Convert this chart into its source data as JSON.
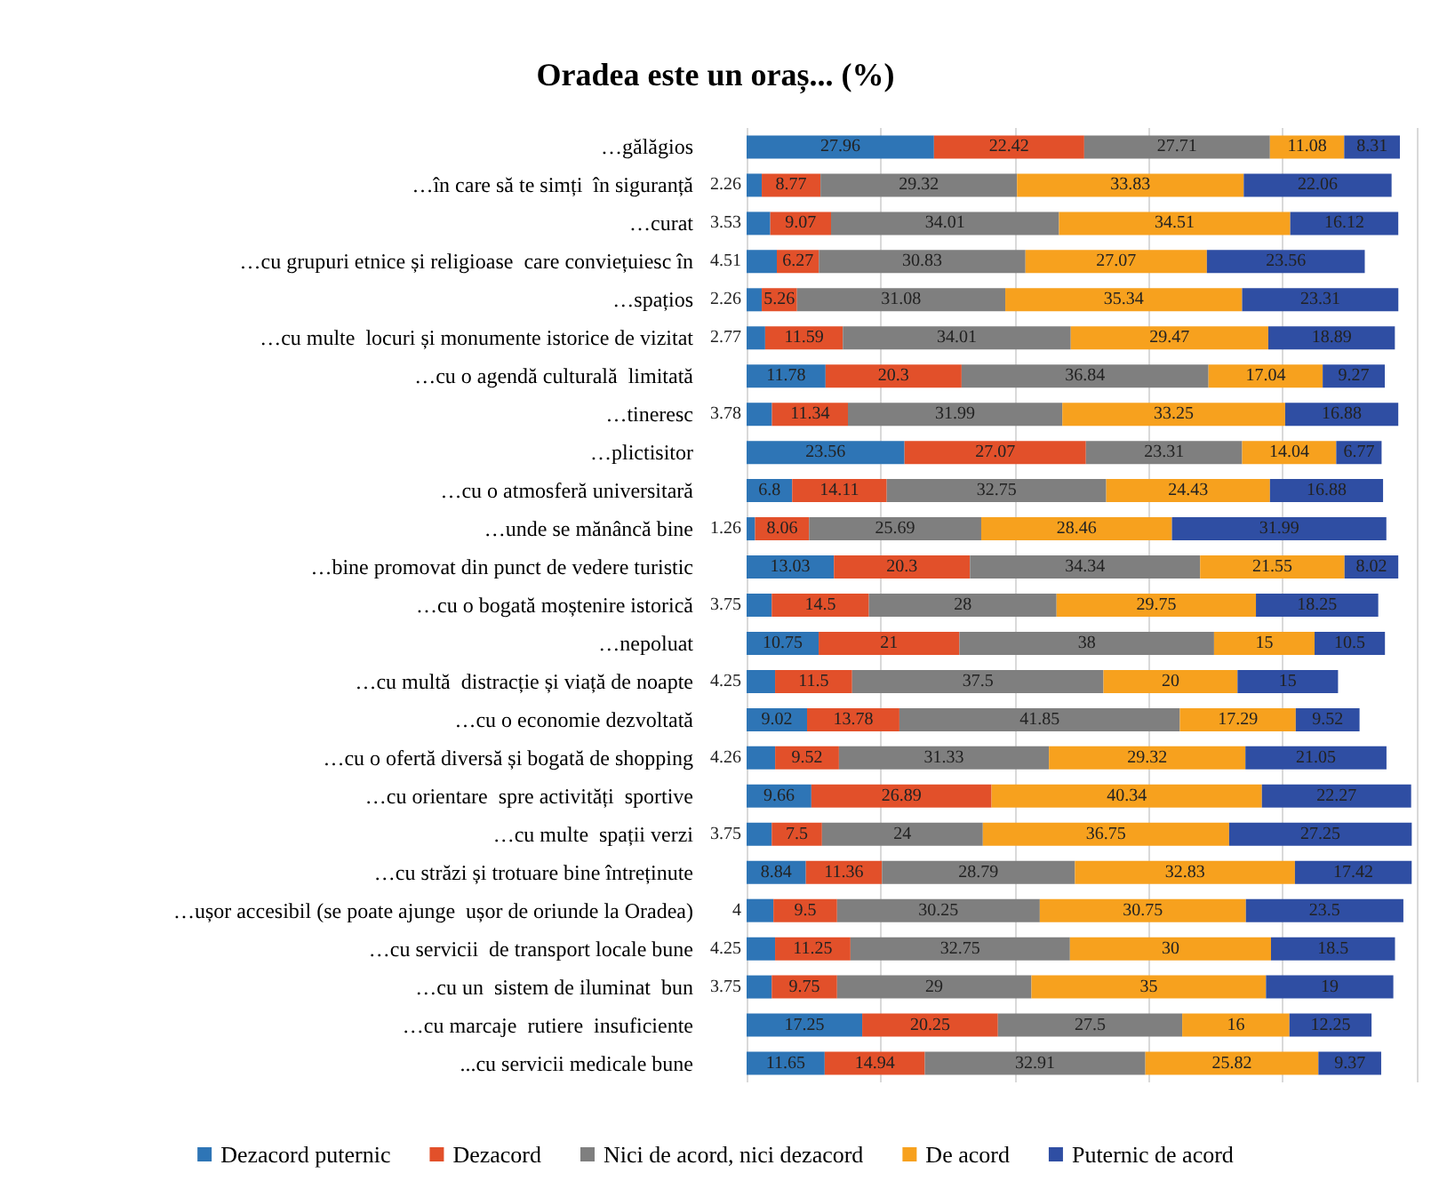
{
  "chart_data": {
    "type": "bar",
    "orientation": "horizontal",
    "stacked": true,
    "title": "Oradea este un oraș... (%)",
    "categories": [
      "…gălăgios",
      "…în care să te simți  în siguranță",
      "…curat",
      "…cu grupuri etnice și religioase  care conviețuiesc în",
      "…spațios",
      "…cu multe  locuri și monumente istorice de vizitat",
      "…cu o agendă culturală  limitată",
      "…tineresc",
      "…plictisitor",
      "…cu o atmosferă universitară",
      "…unde se mănâncă bine",
      "…bine promovat din punct de vedere turistic",
      "…cu o bogată moștenire istorică",
      "…nepoluat",
      "…cu multă  distracție și viață de noapte",
      "…cu o economie dezvoltată",
      "…cu o ofertă diversă și bogată de shopping",
      "…cu orientare  spre activități  sportive",
      "…cu multe  spații verzi",
      "…cu străzi și trotuare bine întreținute",
      "…ușor accesibil (se poate ajunge  ușor de oriunde la Oradea)",
      "…cu servicii  de transport locale bune",
      "…cu un  sistem de iluminat  bun",
      "…cu marcaje  rutiere  insuficiente",
      "...cu servicii medicale bune"
    ],
    "series": [
      {
        "name": "Dezacord puternic",
        "color": "#2e75b6",
        "values": [
          27.96,
          2.26,
          3.53,
          4.51,
          2.26,
          2.77,
          11.78,
          3.78,
          23.56,
          6.8,
          1.26,
          13.03,
          3.75,
          10.75,
          4.25,
          9.02,
          4.26,
          9.66,
          3.75,
          8.84,
          4,
          4.25,
          3.75,
          17.25,
          11.65
        ]
      },
      {
        "name": "Dezacord",
        "color": "#e2502a",
        "values": [
          22.42,
          8.77,
          9.07,
          6.27,
          5.26,
          11.59,
          20.3,
          11.34,
          27.07,
          14.11,
          8.06,
          20.3,
          14.5,
          21,
          11.5,
          13.78,
          9.52,
          26.89,
          7.5,
          11.36,
          9.5,
          11.25,
          9.75,
          20.25,
          14.94
        ]
      },
      {
        "name": "Nici de acord, nici dezacord",
        "color": "#7f7f7f",
        "values": [
          27.71,
          29.32,
          34.01,
          30.83,
          31.08,
          34.01,
          36.84,
          31.99,
          23.31,
          32.75,
          25.69,
          34.34,
          28,
          38,
          37.5,
          41.85,
          31.33,
          null,
          24,
          28.79,
          30.25,
          32.75,
          29,
          27.5,
          32.91
        ]
      },
      {
        "name": "De acord",
        "color": "#f7a11e",
        "values": [
          11.08,
          33.83,
          34.51,
          27.07,
          35.34,
          29.47,
          17.04,
          33.25,
          14.04,
          24.43,
          28.46,
          21.55,
          29.75,
          15,
          20,
          17.29,
          29.32,
          40.34,
          36.75,
          32.83,
          30.75,
          30,
          35,
          16,
          25.82
        ]
      },
      {
        "name": "Puternic de acord",
        "color": "#2f4ea3",
        "values": [
          8.31,
          22.06,
          16.12,
          23.56,
          23.31,
          18.89,
          9.27,
          16.88,
          6.77,
          16.88,
          31.99,
          8.02,
          18.25,
          10.5,
          15,
          9.52,
          21.05,
          22.27,
          27.25,
          17.42,
          23.5,
          18.5,
          19,
          12.25,
          9.37
        ]
      }
    ],
    "xlim": [
      0,
      100
    ],
    "xticks": [
      {
        "value": 0,
        "label": null
      },
      {
        "value": 20,
        "label": null
      },
      {
        "value": 40,
        "label": null
      },
      {
        "value": 60,
        "label": null
      },
      {
        "value": 80,
        "label": null
      },
      {
        "value": 100,
        "label": null
      }
    ],
    "tick_labels": "y",
    "grid": "x",
    "legend": "bottom",
    "data_labels": true
  }
}
